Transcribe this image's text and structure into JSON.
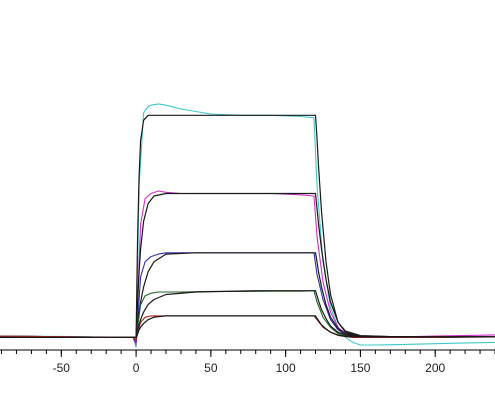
{
  "chart_data": {
    "type": "line",
    "title": "",
    "xlabel": "",
    "ylabel": "",
    "xlim": [
      -91,
      240
    ],
    "ylim": [
      -5,
      100
    ],
    "grid": false,
    "x_ticks": [
      -50,
      0,
      50,
      100,
      150,
      200
    ],
    "x_tick_labels": [
      "-50",
      "0",
      "50",
      "100",
      "150",
      "200"
    ],
    "phases": {
      "baseline_start": -91,
      "association_start": 0,
      "dissociation_start": 120,
      "end": 240
    },
    "series": [
      {
        "role": "measured",
        "color": "#40c8c8",
        "x": [
          -91,
          -40,
          -2,
          0,
          2,
          5,
          8,
          10,
          15,
          20,
          30,
          50,
          70,
          90,
          110,
          119,
          121,
          125,
          130,
          135,
          140,
          145,
          150,
          160,
          180,
          200,
          220,
          240
        ],
        "y": [
          0.5,
          0.3,
          0,
          -4,
          60,
          89,
          91.5,
          92,
          92.5,
          92,
          90.5,
          88.5,
          88,
          88,
          87.5,
          87,
          60,
          30,
          12,
          4,
          0,
          -2,
          -3,
          -3,
          -2.8,
          -2.5,
          -2.2,
          -2
        ]
      },
      {
        "role": "fit",
        "color": "#1a1a1a",
        "x": [
          -91,
          -1,
          0,
          1,
          2,
          3,
          5,
          8,
          12,
          20,
          40,
          80,
          120,
          121,
          122,
          124,
          127,
          130,
          135,
          140,
          150,
          170,
          200,
          240
        ],
        "y": [
          0,
          0,
          0,
          40,
          64,
          78,
          86,
          88,
          88,
          88,
          88,
          88,
          88,
          79,
          68,
          50,
          30,
          17,
          6,
          2,
          0.5,
          0.3,
          0.2,
          0.2
        ]
      },
      {
        "role": "measured",
        "color": "#cc33cc",
        "x": [
          -91,
          -40,
          -2,
          0,
          3,
          6,
          10,
          15,
          20,
          30,
          50,
          70,
          90,
          110,
          119,
          121,
          125,
          130,
          135,
          140,
          145,
          150,
          160,
          200,
          240
        ],
        "y": [
          0.5,
          0.2,
          0,
          -3,
          45,
          55,
          57,
          58,
          57.5,
          57,
          57,
          57,
          57,
          56.5,
          56,
          40,
          22,
          10,
          4,
          1.5,
          0.5,
          0,
          0,
          0.5,
          1
        ]
      },
      {
        "role": "fit",
        "color": "#1a1a1a",
        "x": [
          -91,
          -1,
          0,
          1,
          2,
          3,
          5,
          8,
          12,
          20,
          40,
          80,
          120,
          121,
          122,
          124,
          127,
          130,
          135,
          140,
          150,
          170,
          200,
          240
        ],
        "y": [
          0,
          0,
          0,
          14,
          26,
          35,
          46,
          53,
          56,
          57,
          57,
          57,
          57,
          51,
          45,
          35,
          23,
          14,
          6,
          2.5,
          0.7,
          0.3,
          0.2,
          0.2
        ]
      },
      {
        "role": "measured",
        "color": "#3333aa",
        "x": [
          -91,
          -40,
          -2,
          0,
          3,
          6,
          10,
          15,
          20,
          30,
          50,
          70,
          90,
          110,
          119,
          121,
          125,
          130,
          135,
          140,
          145,
          150,
          160,
          200,
          240
        ],
        "y": [
          0.5,
          0.2,
          0,
          -2,
          24,
          30,
          32,
          33,
          33.5,
          33.5,
          33.5,
          33.5,
          33.5,
          33.5,
          33.5,
          25,
          15,
          7,
          3,
          1,
          0.5,
          0,
          0,
          0,
          0.3
        ]
      },
      {
        "role": "fit",
        "color": "#1a1a1a",
        "x": [
          -91,
          -1,
          0,
          1,
          2,
          3,
          5,
          8,
          12,
          20,
          40,
          80,
          120,
          121,
          122,
          124,
          127,
          130,
          135,
          140,
          150,
          170,
          200,
          240
        ],
        "y": [
          0,
          0,
          0,
          5,
          10,
          14,
          20,
          26,
          30,
          33,
          33.5,
          33.5,
          33.5,
          30,
          26,
          20,
          13,
          8,
          3.5,
          1.5,
          0.5,
          0.3,
          0.2,
          0.2
        ]
      },
      {
        "role": "measured",
        "color": "#226622",
        "x": [
          -91,
          -40,
          -2,
          0,
          3,
          6,
          10,
          15,
          20,
          30,
          50,
          70,
          90,
          110,
          119,
          121,
          125,
          130,
          135,
          140,
          145,
          150,
          160,
          200,
          240
        ],
        "y": [
          0.5,
          0.2,
          0,
          -1,
          13,
          16.5,
          17.5,
          18,
          18,
          18,
          18.2,
          18.2,
          18.3,
          18.3,
          18.5,
          14,
          8,
          4,
          1.5,
          0.5,
          0,
          0,
          0,
          0,
          0.3
        ]
      },
      {
        "role": "fit",
        "color": "#1a1a1a",
        "x": [
          -91,
          -1,
          0,
          1,
          2,
          3,
          5,
          8,
          12,
          20,
          40,
          80,
          120,
          121,
          122,
          124,
          127,
          130,
          135,
          140,
          150,
          170,
          200,
          240
        ],
        "y": [
          0,
          0,
          0,
          2.5,
          5,
          7,
          10,
          13,
          15,
          17,
          18,
          18.5,
          18.5,
          16.5,
          14.5,
          11,
          7.5,
          4.5,
          2,
          1,
          0.3,
          0.2,
          0.2,
          0.2
        ]
      },
      {
        "role": "measured",
        "color": "#aa2222",
        "x": [
          -91,
          -40,
          -2,
          0,
          3,
          6,
          10,
          15,
          20,
          30,
          50,
          70,
          90,
          110,
          119,
          121,
          125,
          130,
          135,
          140,
          145,
          150,
          160,
          200,
          240
        ],
        "y": [
          0.5,
          0.2,
          0,
          -1,
          6,
          8,
          8.5,
          8.5,
          8.5,
          8.5,
          8.5,
          8.5,
          8.5,
          8.5,
          8.5,
          7,
          4,
          2,
          0.8,
          0.3,
          0,
          0,
          0,
          0,
          0.2
        ]
      },
      {
        "role": "fit",
        "color": "#1a1a1a",
        "x": [
          -91,
          -1,
          0,
          1,
          2,
          3,
          5,
          8,
          12,
          20,
          40,
          80,
          120,
          121,
          122,
          124,
          127,
          130,
          135,
          140,
          150,
          170,
          200,
          240
        ],
        "y": [
          0,
          0,
          0,
          1.5,
          3,
          4,
          5.5,
          7,
          8,
          8.5,
          8.5,
          8.5,
          8.5,
          7.5,
          6.7,
          5,
          3.4,
          2.1,
          0.9,
          0.4,
          0.2,
          0.2,
          0.2,
          0.2
        ]
      }
    ]
  }
}
